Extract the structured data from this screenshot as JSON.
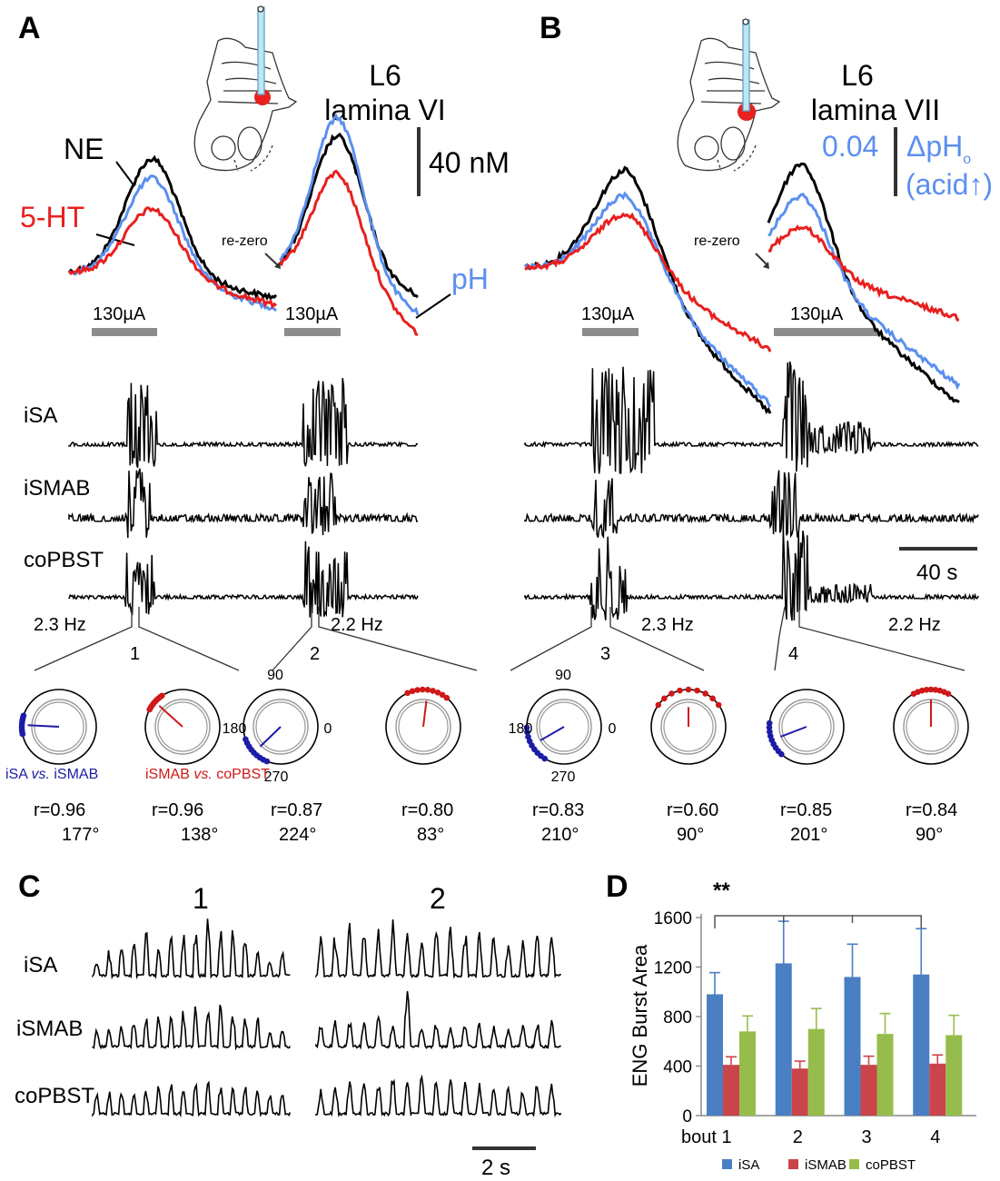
{
  "panels": {
    "A": "A",
    "B": "B",
    "C": "C",
    "D": "D"
  },
  "panelA": {
    "level": "L6",
    "lamina": "lamina VI",
    "ne": "NE",
    "ht": "5-HT",
    "ph": "pH",
    "rezero": "re-zero",
    "scale_nm": "40 nM",
    "stim1": "130µA",
    "stim2": "130µA",
    "freq1": "2.3 Hz",
    "freq2": "2.2 Hz",
    "bout1": "1",
    "bout2": "2"
  },
  "panelB": {
    "level": "L6",
    "lamina": "lamina VII",
    "ph_scale": "0.04",
    "dph_main": "ΔpH",
    "dph_sub": "o",
    "acid": "(acid↑)",
    "rezero": "re-zero",
    "stim1": "130µA",
    "stim2": "130µA",
    "freq1": "2.3 Hz",
    "freq2": "2.2 Hz",
    "bout3": "3",
    "bout4": "4",
    "time_scale": "40 s"
  },
  "nerves": {
    "isa": "iSA",
    "ismab": "iSMAB",
    "copbst": "coPBST"
  },
  "polar": {
    "labels": {
      "top": "90",
      "left": "180",
      "right": "0",
      "bottom": "270"
    },
    "legend_blue_a": "iSA ",
    "legend_vs": "vs.",
    "legend_blue_b": " iSMAB",
    "legend_red_a": "iSMAB ",
    "legend_red_b": " coPBST",
    "stats": [
      {
        "r": "r=0.96",
        "deg": "177°",
        "color": "blue",
        "angle": 177
      },
      {
        "r": "r=0.96",
        "deg": "138°",
        "color": "red",
        "angle": 138
      },
      {
        "r": "r=0.87",
        "deg": "224°",
        "color": "blue",
        "angle": 224
      },
      {
        "r": "r=0.80",
        "deg": "83°",
        "color": "red",
        "angle": 83
      },
      {
        "r": "r=0.83",
        "deg": "210°",
        "color": "blue",
        "angle": 210
      },
      {
        "r": "r=0.60",
        "deg": "90°",
        "color": "red",
        "angle": 90
      },
      {
        "r": "r=0.85",
        "deg": "201°",
        "color": "blue",
        "angle": 201
      },
      {
        "r": "r=0.84",
        "deg": "90°",
        "color": "red",
        "angle": 90
      }
    ]
  },
  "panelC": {
    "bout1": "1",
    "bout2": "2",
    "time_scale": "2 s"
  },
  "colors": {
    "ne": "#000000",
    "ht": "#e8201f",
    "ph": "#5b8ff0",
    "blue": "#1c1ca8",
    "red": "#d01818",
    "isa": "#4a7fc4",
    "ismab": "#c9454a",
    "copbst": "#96bd4c"
  },
  "chart_data": {
    "type": "bar",
    "ylabel": "ENG Burst Area",
    "ylim": [
      0,
      1600
    ],
    "yticks": [
      "0",
      "400",
      "800",
      "1200",
      "1600"
    ],
    "categories": [
      "bout 1",
      "2",
      "3",
      "4"
    ],
    "significance": "**",
    "series": [
      {
        "name": "iSA",
        "values": [
          980,
          1230,
          1120,
          1140
        ],
        "errors": [
          175,
          340,
          265,
          370
        ]
      },
      {
        "name": "iSMAB",
        "values": [
          410,
          380,
          410,
          420
        ],
        "errors": [
          65,
          60,
          70,
          70
        ]
      },
      {
        "name": "coPBST",
        "values": [
          680,
          700,
          660,
          650
        ],
        "errors": [
          125,
          165,
          165,
          160
        ]
      }
    ]
  }
}
